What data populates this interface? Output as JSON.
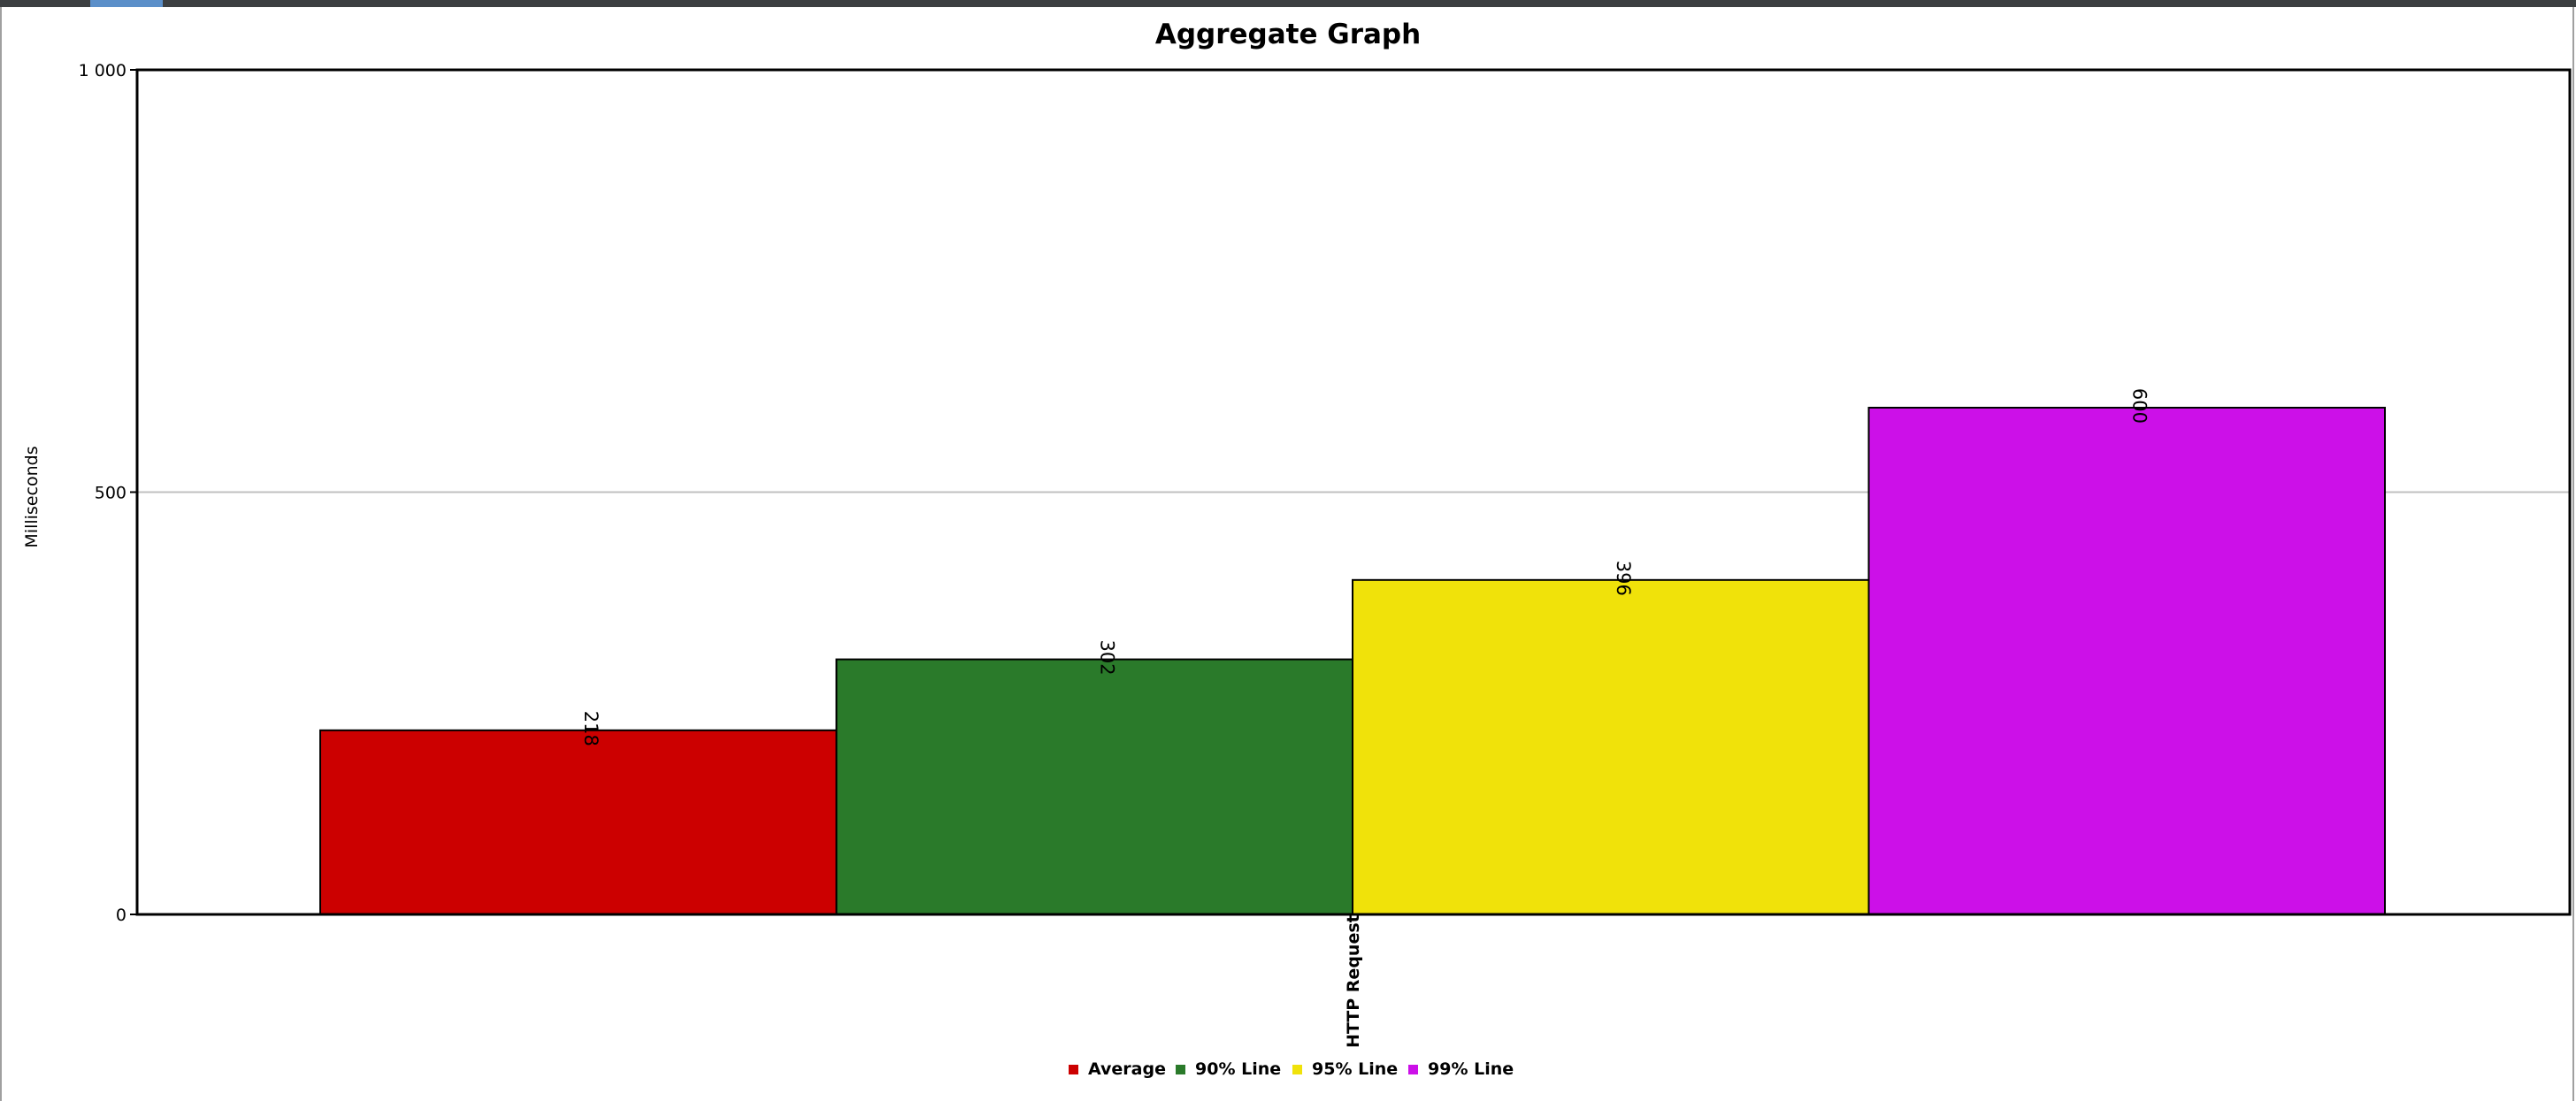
{
  "window": {
    "accent_color": "#5b8fc9",
    "bar_color": "#3c3f41"
  },
  "chart_data": {
    "type": "bar",
    "title": "Aggregate Graph",
    "ylabel": "Milliseconds",
    "xlabel": "",
    "ylim": [
      0,
      1000
    ],
    "y_ticks": [
      {
        "value": 0,
        "label": "0"
      },
      {
        "value": 500,
        "label": "500"
      },
      {
        "value": 1000,
        "label": "1 000"
      }
    ],
    "grid": true,
    "categories": [
      "HTTP Request"
    ],
    "legend_position": "bottom",
    "series": [
      {
        "name": "Average",
        "values": [
          218
        ],
        "color": "#cc0000",
        "label": "218"
      },
      {
        "name": "90% Line",
        "values": [
          302
        ],
        "color": "#2a7a2a",
        "label": "302"
      },
      {
        "name": "95% Line",
        "values": [
          396
        ],
        "color": "#f0e20a",
        "label": "396"
      },
      {
        "name": "99% Line",
        "values": [
          600
        ],
        "color": "#cc10e8",
        "label": "600"
      }
    ]
  }
}
